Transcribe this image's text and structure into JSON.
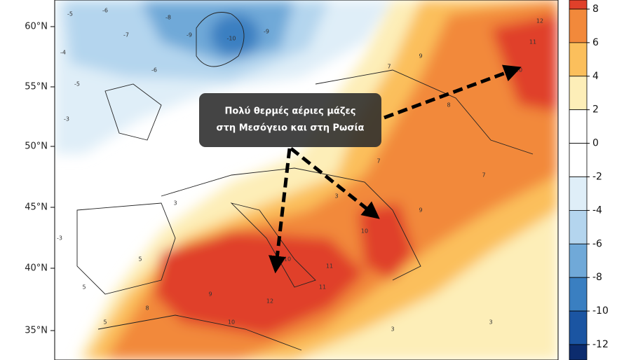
{
  "map": {
    "latitude_labels": [
      "60°N",
      "55°N",
      "50°N",
      "45°N",
      "40°N",
      "35°N"
    ],
    "colorbar": {
      "ticks": [
        8,
        6,
        4,
        2,
        0,
        -2,
        -4,
        -6,
        -8,
        -10,
        -12
      ],
      "colors": [
        "#e0402a",
        "#f2893b",
        "#fbbf5c",
        "#fdeeb8",
        "#ffffff",
        "#ffffff",
        "#dfeef8",
        "#b4d5ee",
        "#70a9d8",
        "#3a7fc1",
        "#1b55a2",
        "#0c2c6e"
      ]
    },
    "annotation": [
      "Πολύ θερμές αέριες μάζες",
      "στη Μεσόγειο και στη Ρωσία"
    ],
    "contour_labels": [
      -5,
      -6,
      -7,
      -8,
      -9,
      -10,
      -9,
      -6,
      -4,
      -5,
      -3,
      -3,
      7,
      9,
      10,
      11,
      12,
      8,
      7,
      10,
      11,
      10,
      9,
      3,
      5,
      5,
      8,
      10,
      12,
      11,
      9,
      7,
      3,
      3,
      5,
      3
    ]
  }
}
